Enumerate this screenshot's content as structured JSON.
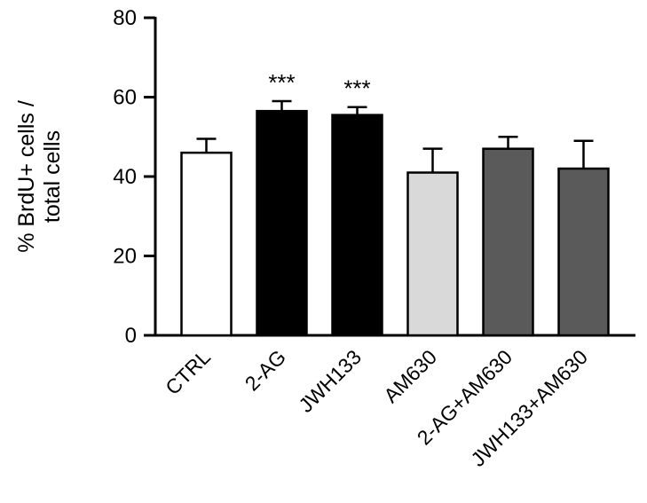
{
  "figure": {
    "background": "#ffffff"
  },
  "chart_data": {
    "type": "bar",
    "title": "",
    "xlabel": "",
    "ylabel": "% BrdU+ cells / total cells",
    "ylabel_lines": [
      "% BrdU+ cells /",
      "total cells"
    ],
    "ylim": [
      0,
      80
    ],
    "yticks": [
      0,
      20,
      40,
      60,
      80
    ],
    "grid": false,
    "legend": false,
    "categories": [
      "CTRL",
      "2-AG",
      "JWH133",
      "AM630",
      "2-AG+AM630",
      "JWH133+AM630"
    ],
    "values": [
      46,
      56.5,
      55.5,
      41,
      47,
      42
    ],
    "errors": [
      3.5,
      2.5,
      2,
      6,
      3,
      7
    ],
    "error_type": "upper-sem",
    "significance": [
      "",
      "***",
      "***",
      "",
      "",
      ""
    ],
    "bar_colors": [
      "#ffffff",
      "#000000",
      "#000000",
      "#d9d9d9",
      "#5a5a5a",
      "#5a5a5a"
    ],
    "bar_border_color": "#000000",
    "error_bar_color": "#000000",
    "axis_color": "#000000",
    "text_color": "#000000",
    "background": "#ffffff"
  }
}
